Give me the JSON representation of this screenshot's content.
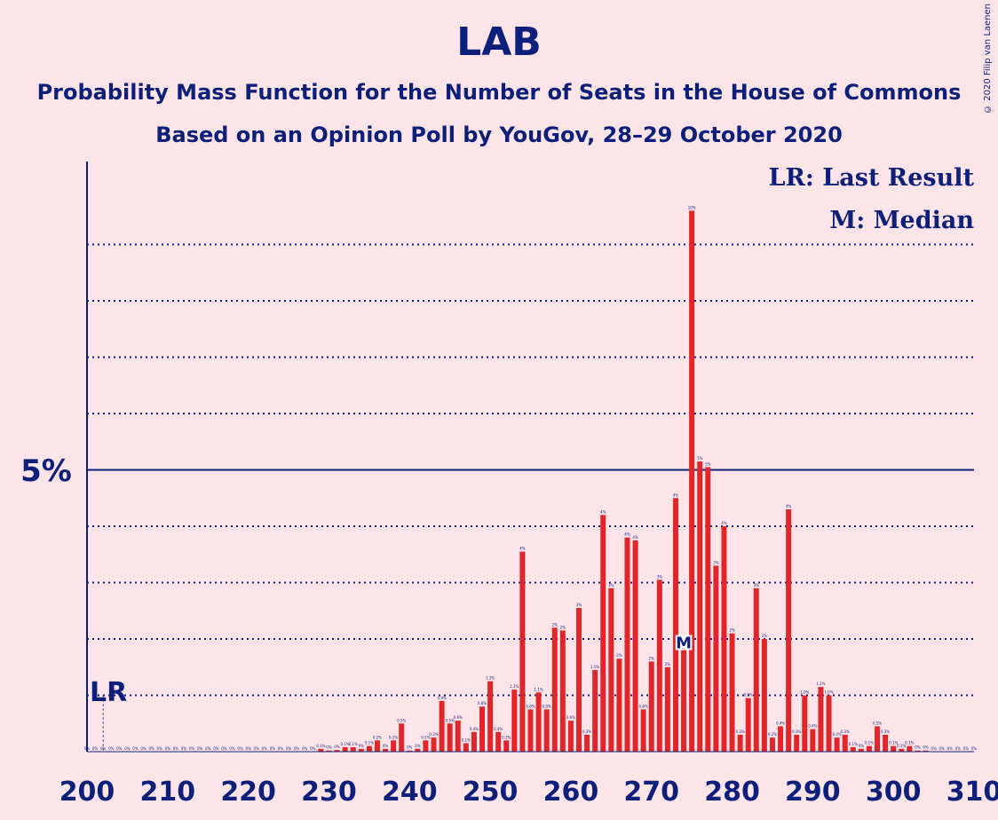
{
  "header": {
    "title": "LAB",
    "subtitle_line1": "Probability Mass Function for the Number of Seats in the House of Commons",
    "subtitle_line2": "Based on an Opinion Poll by YouGov, 28–29 October 2020",
    "copyright": "© 2020 Filip van Laenen"
  },
  "colors": {
    "background": "#fde4e8",
    "bar": "#e0262a",
    "axis": "#0c1f7a",
    "text": "#0c1f7a"
  },
  "chart_data": {
    "type": "bar",
    "title": "LAB",
    "xlabel": "",
    "ylabel": "",
    "xlim": [
      200,
      310
    ],
    "ylim": [
      0,
      9.6
    ],
    "x_ticks": [
      200,
      210,
      220,
      230,
      240,
      250,
      260,
      270,
      280,
      290,
      300,
      310
    ],
    "x_tick_labels": [
      "200",
      "210",
      "220",
      "230",
      "240",
      "250",
      "260",
      "270",
      "280",
      "290",
      "300",
      "310"
    ],
    "y_tick_label": "5%",
    "y_tick_value": 5,
    "gridlines": [
      1,
      2,
      3,
      4,
      6,
      7,
      8,
      9
    ],
    "last_result": {
      "seat": 202,
      "label": "LR"
    },
    "median": {
      "seat": 274,
      "label": "M"
    },
    "legend": [
      "LR: Last Result",
      "M: Median"
    ],
    "x": [
      200,
      201,
      202,
      203,
      204,
      205,
      206,
      207,
      208,
      209,
      210,
      211,
      212,
      213,
      214,
      215,
      216,
      217,
      218,
      219,
      220,
      221,
      222,
      223,
      224,
      225,
      226,
      227,
      228,
      229,
      230,
      231,
      232,
      233,
      234,
      235,
      236,
      237,
      238,
      239,
      240,
      241,
      242,
      243,
      244,
      245,
      246,
      247,
      248,
      249,
      250,
      251,
      252,
      253,
      254,
      255,
      256,
      257,
      258,
      259,
      260,
      261,
      262,
      263,
      264,
      265,
      266,
      267,
      268,
      269,
      270,
      271,
      272,
      273,
      274,
      275,
      276,
      277,
      278,
      279,
      280,
      281,
      282,
      283,
      284,
      285,
      286,
      287,
      288,
      289,
      290,
      291,
      292,
      293,
      294,
      295,
      296,
      297,
      298,
      299,
      300,
      301,
      302,
      303,
      304,
      305,
      306,
      307,
      308,
      309,
      310
    ],
    "values": [
      0,
      0,
      0,
      0,
      0,
      0,
      0,
      0,
      0,
      0,
      0,
      0,
      0,
      0,
      0,
      0,
      0,
      0,
      0,
      0,
      0,
      0,
      0,
      0,
      0,
      0,
      0,
      0,
      0,
      0.05,
      0.02,
      0.03,
      0.08,
      0.08,
      0.05,
      0.1,
      0.2,
      0.05,
      0.2,
      0.5,
      0.02,
      0.05,
      0.2,
      0.25,
      0.9,
      0.5,
      0.55,
      0.15,
      0.35,
      0.8,
      1.25,
      0.35,
      0.2,
      1.1,
      3.55,
      0.75,
      1.05,
      0.75,
      2.2,
      2.15,
      0.55,
      2.55,
      0.3,
      1.45,
      4.2,
      2.9,
      1.65,
      3.8,
      3.75,
      0.75,
      1.6,
      3.05,
      1.5,
      4.5,
      1.8,
      9.6,
      5.15,
      5.05,
      3.3,
      4.0,
      2.1,
      0.3,
      0.95,
      2.9,
      2.0,
      0.25,
      0.45,
      4.3,
      0.3,
      1.0,
      0.4,
      1.15,
      1.0,
      0.25,
      0.3,
      0.08,
      0.05,
      0.1,
      0.45,
      0.3,
      0.1,
      0.05,
      0.1,
      0.02,
      0.02,
      0,
      0,
      0,
      0,
      0,
      0
    ],
    "value_labels": [
      "0%",
      "0%",
      "0%",
      "0%",
      "0%",
      "0%",
      "0%",
      "0%",
      "0%",
      "0%",
      "0%",
      "0%",
      "0%",
      "0%",
      "0%",
      "0%",
      "0%",
      "0%",
      "0%",
      "0%",
      "0%",
      "0%",
      "0%",
      "0%",
      "0%",
      "0%",
      "0%",
      "0%",
      "0%",
      "0.1%",
      "0%",
      "0%",
      "0.1%",
      "0.1%",
      "0%",
      "0.1%",
      "0.2%",
      "0%",
      "0.2%",
      "0.5%",
      "0%",
      "0%",
      "0.2%",
      "0.2%",
      "0.9%",
      "0.5%",
      "0.6%",
      "0.1%",
      "0.4%",
      "0.8%",
      "1.3%",
      "0.4%",
      "0.2%",
      "1.1%",
      "4%",
      "0.8%",
      "1.1%",
      "0.8%",
      "2%",
      "2%",
      "0.6%",
      "3%",
      "0.3%",
      "1.5%",
      "4%",
      "3%",
      "2%",
      "4%",
      "4%",
      "0.8%",
      "2%",
      "3%",
      "2%",
      "4%",
      "2%",
      "10%",
      "5%",
      "5%",
      "3%",
      "4%",
      "2%",
      "0.3%",
      "0.9%",
      "3%",
      "2%",
      "0.2%",
      "0.4%",
      "4%",
      "0.3%",
      "1.0%",
      "0.4%",
      "1.2%",
      "1.0%",
      "0.2%",
      "0.3%",
      "0.1%",
      "0%",
      "0.1%",
      "0.5%",
      "0.3%",
      "0.1%",
      "0.1%",
      "0.1%",
      "0%",
      "0%",
      "0%",
      "0%",
      "0%",
      "0%",
      "0%",
      "0%"
    ]
  }
}
